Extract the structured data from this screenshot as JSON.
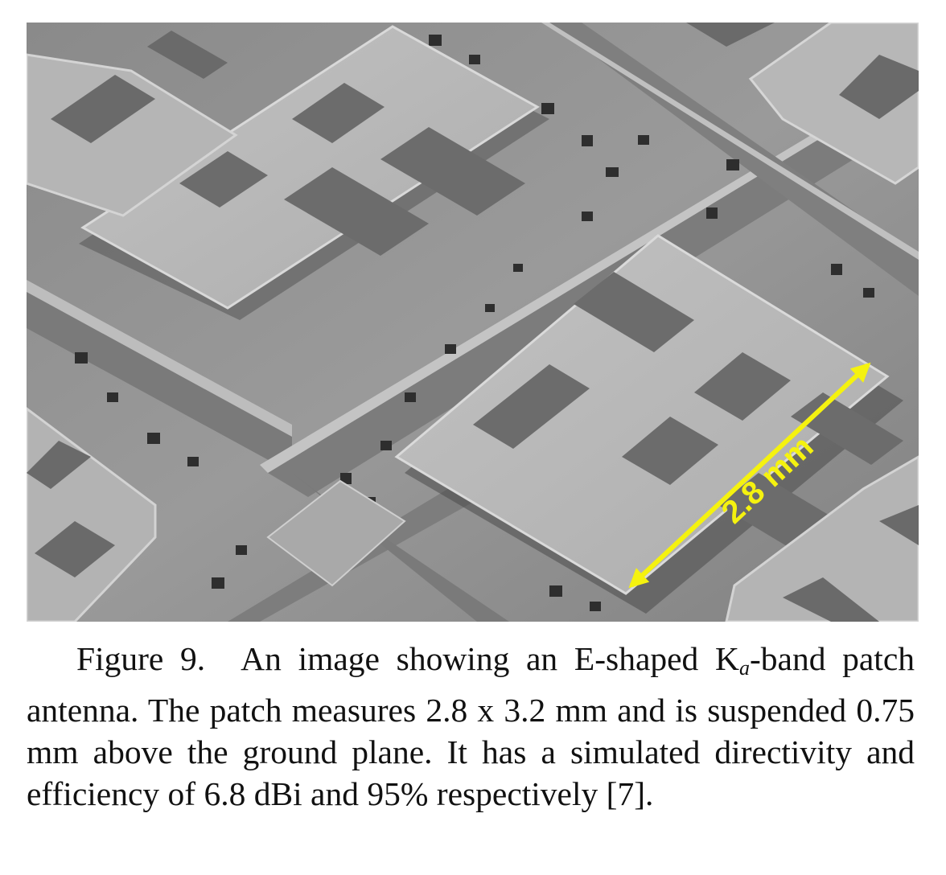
{
  "figure": {
    "scale_bar": {
      "label": "2.8 mm",
      "color": "#f5f20f"
    },
    "image_colors": {
      "background": "#8e8e8e",
      "patch_surface": "#b9b9b9",
      "patch_edge": "#d7d7d7",
      "slot_fill": "#6c6c6c",
      "shadow": "#4a4a4a",
      "dark_pocket": "#2c2c2c"
    },
    "caption": {
      "label": "Figure 9.",
      "text_before_k": "An image showing an E-shaped K",
      "k_subscript": "a",
      "text_after_k": "-band patch antenna.  The patch measures 2.8 x 3.2 mm and is suspended 0.75 mm above the ground plane.  It has a simulated directivity and efficiency of 6.8 dBi and 95% respectively [7]."
    }
  }
}
